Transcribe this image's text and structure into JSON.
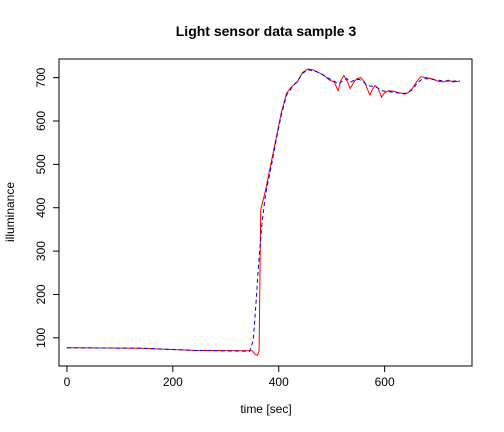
{
  "chart_data": {
    "type": "line",
    "title": "Light sensor data sample 3",
    "xlabel": "time [sec]",
    "ylabel": "illuminance",
    "xlim": [
      -15,
      765
    ],
    "ylim": [
      35,
      743
    ],
    "x_ticks": [
      0,
      200,
      400,
      600
    ],
    "y_ticks": [
      100,
      200,
      300,
      400,
      500,
      600,
      700
    ],
    "grid": false,
    "series": [
      {
        "color": "#ff0000",
        "line_style": "solid",
        "points": [
          [
            0,
            77
          ],
          [
            140,
            76
          ],
          [
            240,
            71
          ],
          [
            350,
            70
          ],
          [
            355,
            62
          ],
          [
            360,
            60
          ],
          [
            363,
            70
          ],
          [
            366,
            395
          ],
          [
            375,
            440
          ],
          [
            385,
            500
          ],
          [
            395,
            560
          ],
          [
            405,
            620
          ],
          [
            415,
            665
          ],
          [
            425,
            680
          ],
          [
            435,
            690
          ],
          [
            445,
            712
          ],
          [
            455,
            720
          ],
          [
            465,
            718
          ],
          [
            475,
            712
          ],
          [
            485,
            706
          ],
          [
            495,
            695
          ],
          [
            505,
            690
          ],
          [
            512,
            670
          ],
          [
            518,
            695
          ],
          [
            523,
            705
          ],
          [
            530,
            690
          ],
          [
            535,
            675
          ],
          [
            542,
            690
          ],
          [
            548,
            698
          ],
          [
            555,
            700
          ],
          [
            562,
            690
          ],
          [
            568,
            672
          ],
          [
            572,
            660
          ],
          [
            577,
            673
          ],
          [
            582,
            682
          ],
          [
            588,
            675
          ],
          [
            594,
            655
          ],
          [
            600,
            665
          ],
          [
            608,
            670
          ],
          [
            618,
            668
          ],
          [
            628,
            665
          ],
          [
            638,
            662
          ],
          [
            645,
            666
          ],
          [
            652,
            675
          ],
          [
            660,
            690
          ],
          [
            668,
            702
          ],
          [
            678,
            700
          ],
          [
            690,
            697
          ],
          [
            700,
            692
          ],
          [
            710,
            690
          ],
          [
            720,
            694
          ],
          [
            730,
            690
          ],
          [
            742,
            692
          ]
        ]
      },
      {
        "color": "#0000ff",
        "line_style": "dashed",
        "points": [
          [
            0,
            77
          ],
          [
            140,
            76
          ],
          [
            240,
            71
          ],
          [
            345,
            69
          ],
          [
            352,
            95
          ],
          [
            357,
            180
          ],
          [
            362,
            270
          ],
          [
            368,
            360
          ],
          [
            375,
            430
          ],
          [
            385,
            490
          ],
          [
            395,
            555
          ],
          [
            405,
            615
          ],
          [
            415,
            660
          ],
          [
            425,
            678
          ],
          [
            435,
            692
          ],
          [
            445,
            710
          ],
          [
            455,
            718
          ],
          [
            465,
            716
          ],
          [
            475,
            712
          ],
          [
            485,
            705
          ],
          [
            495,
            698
          ],
          [
            505,
            692
          ],
          [
            512,
            685
          ],
          [
            520,
            692
          ],
          [
            528,
            698
          ],
          [
            536,
            690
          ],
          [
            544,
            695
          ],
          [
            552,
            696
          ],
          [
            560,
            690
          ],
          [
            568,
            682
          ],
          [
            576,
            680
          ],
          [
            585,
            678
          ],
          [
            594,
            670
          ],
          [
            605,
            668
          ],
          [
            618,
            666
          ],
          [
            630,
            664
          ],
          [
            642,
            664
          ],
          [
            652,
            672
          ],
          [
            662,
            688
          ],
          [
            672,
            698
          ],
          [
            685,
            697
          ],
          [
            700,
            694
          ],
          [
            715,
            692
          ],
          [
            730,
            692
          ],
          [
            742,
            693
          ]
        ]
      }
    ]
  }
}
